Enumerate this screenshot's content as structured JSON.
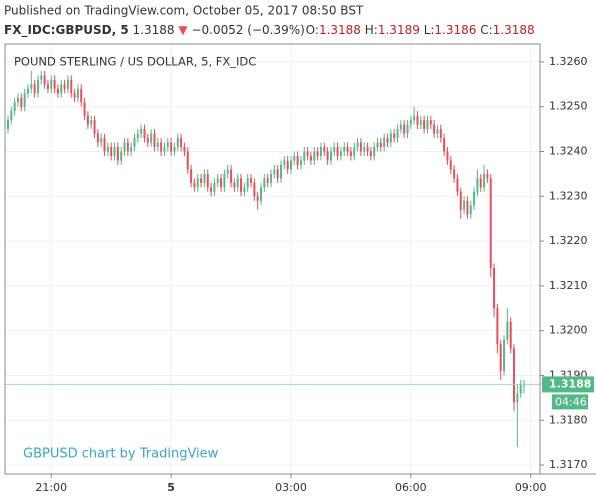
{
  "chart_data": {
    "type": "candlestick",
    "header": "Published on TradingView.com, October 05, 2017 08:50 BST",
    "symbol": "FX_IDC:GBPUSD, 5",
    "change_arrow": "▼",
    "change": "−0.0052 (−0.39%)",
    "ohlc_labels": [
      "O:",
      "H:",
      "L:",
      "C:"
    ],
    "title": "POUND STERLING / US DOLLAR, 5, FX_IDC",
    "watermark": "GBPUSD chart by TradingView",
    "countdown": "04:46",
    "up_color": "#53b987",
    "down_color": "#eb4d5c",
    "last_line_color": "#9fd9cc",
    "grid": true,
    "xlim": [
      -0.9,
      159.8
    ],
    "xticks": [
      {
        "value": 13,
        "label": "21:00"
      },
      {
        "value": 49,
        "label": "5"
      },
      {
        "value": 85,
        "label": "03:00"
      },
      {
        "value": 121,
        "label": "06:00"
      },
      {
        "value": 157,
        "label": "09:00"
      }
    ],
    "ylim": [
      1.3168,
      1.3264
    ],
    "yticks": [
      {
        "value": 1.317,
        "label": "1.3170"
      },
      {
        "value": 1.318,
        "label": "1.3180"
      },
      {
        "value": 1.319,
        "label": "1.3190"
      },
      {
        "value": 1.32,
        "label": "1.3200"
      },
      {
        "value": 1.321,
        "label": "1.3210"
      },
      {
        "value": 1.322,
        "label": "1.3220"
      },
      {
        "value": 1.323,
        "label": "1.3230"
      },
      {
        "value": 1.324,
        "label": "1.3240"
      },
      {
        "value": 1.325,
        "label": "1.3250"
      },
      {
        "value": 1.326,
        "label": "1.3260"
      }
    ],
    "open": [
      1.3245,
      1.3247,
      1.3249,
      1.3251,
      1.3252,
      1.325,
      1.3253,
      1.3254,
      1.3255,
      1.3253,
      1.3256,
      1.3257,
      1.3255,
      1.3254,
      1.3256,
      1.3254,
      1.3253,
      1.3255,
      1.3254,
      1.3256,
      1.3253,
      1.3252,
      1.3254,
      1.3251,
      1.3248,
      1.3246,
      1.3247,
      1.3244,
      1.3242,
      1.3243,
      1.324,
      1.3241,
      1.3239,
      1.3241,
      1.3238,
      1.324,
      1.3242,
      1.324,
      1.3241,
      1.3243,
      1.3244,
      1.3245,
      1.3243,
      1.3242,
      1.3244,
      1.3241,
      1.3242,
      1.324,
      1.3241,
      1.3242,
      1.324,
      1.3241,
      1.3243,
      1.3241,
      1.324,
      1.3236,
      1.3233,
      1.3232,
      1.3234,
      1.3233,
      1.3235,
      1.3232,
      1.3231,
      1.3233,
      1.3234,
      1.3232,
      1.3235,
      1.3236,
      1.3233,
      1.3232,
      1.3234,
      1.3231,
      1.3232,
      1.3234,
      1.3233,
      1.323,
      1.3229,
      1.3232,
      1.3234,
      1.3233,
      1.3235,
      1.3236,
      1.3234,
      1.3237,
      1.3238,
      1.3236,
      1.3238,
      1.3239,
      1.3237,
      1.3238,
      1.324,
      1.3239,
      1.3238,
      1.324,
      1.3239,
      1.3241,
      1.324,
      1.3238,
      1.324,
      1.3241,
      1.3239,
      1.324,
      1.3241,
      1.324,
      1.3239,
      1.3241,
      1.3242,
      1.324,
      1.3241,
      1.324,
      1.3239,
      1.3241,
      1.3242,
      1.3241,
      1.3243,
      1.3242,
      1.3244,
      1.3243,
      1.3245,
      1.3246,
      1.3244,
      1.3246,
      1.3247,
      1.3248,
      1.3246,
      1.3247,
      1.3245,
      1.3247,
      1.3246,
      1.3244,
      1.3245,
      1.3243,
      1.324,
      1.3238,
      1.3236,
      1.3234,
      1.3231,
      1.3227,
      1.3229,
      1.3226,
      1.3228,
      1.3231,
      1.3234,
      1.3232,
      1.3235,
      1.3234,
      1.3214,
      1.3205,
      1.3197,
      1.3191,
      1.3198,
      1.3202,
      1.3196,
      1.3184,
      1.3186,
      1.3188
    ],
    "high": [
      1.3248,
      1.325,
      1.3252,
      1.3253,
      1.3253,
      1.3254,
      1.3255,
      1.3258,
      1.3256,
      1.3257,
      1.3258,
      1.3258,
      1.3256,
      1.3257,
      1.3257,
      1.3255,
      1.3256,
      1.3256,
      1.3257,
      1.3257,
      1.3254,
      1.3255,
      1.3255,
      1.3252,
      1.3249,
      1.3248,
      1.3248,
      1.3245,
      1.3244,
      1.3244,
      1.3242,
      1.3242,
      1.3242,
      1.3242,
      1.3241,
      1.3243,
      1.3243,
      1.3242,
      1.3244,
      1.3245,
      1.3246,
      1.3246,
      1.3244,
      1.3245,
      1.3245,
      1.3243,
      1.3243,
      1.3242,
      1.3243,
      1.3243,
      1.3242,
      1.3244,
      1.3244,
      1.3242,
      1.3241,
      1.3237,
      1.3234,
      1.3235,
      1.3235,
      1.3236,
      1.3236,
      1.3233,
      1.3234,
      1.3235,
      1.3235,
      1.3236,
      1.3237,
      1.3237,
      1.3234,
      1.3235,
      1.3235,
      1.3233,
      1.3235,
      1.3235,
      1.3234,
      1.3231,
      1.3233,
      1.3235,
      1.3235,
      1.3236,
      1.3237,
      1.3237,
      1.3238,
      1.3239,
      1.3239,
      1.3239,
      1.324,
      1.324,
      1.3239,
      1.3241,
      1.3241,
      1.324,
      1.3241,
      1.3241,
      1.3242,
      1.3242,
      1.3241,
      1.3241,
      1.3242,
      1.3242,
      1.3241,
      1.3242,
      1.3242,
      1.3241,
      1.3242,
      1.3243,
      1.3243,
      1.3242,
      1.3242,
      1.3241,
      1.3242,
      1.3243,
      1.3243,
      1.3244,
      1.3244,
      1.3245,
      1.3245,
      1.3246,
      1.3247,
      1.3247,
      1.3247,
      1.3248,
      1.325,
      1.3249,
      1.3248,
      1.3248,
      1.3248,
      1.3248,
      1.3247,
      1.3246,
      1.3246,
      1.3244,
      1.3241,
      1.3239,
      1.3237,
      1.3235,
      1.3232,
      1.323,
      1.323,
      1.3229,
      1.3232,
      1.3236,
      1.3235,
      1.3237,
      1.3236,
      1.3235,
      1.3215,
      1.3206,
      1.3198,
      1.3199,
      1.3205,
      1.3203,
      1.3197,
      1.3188,
      1.3189,
      1.3189
    ],
    "low": [
      1.3244,
      1.3246,
      1.3248,
      1.325,
      1.3249,
      1.3249,
      1.3252,
      1.3253,
      1.3252,
      1.3252,
      1.3255,
      1.3254,
      1.3253,
      1.3253,
      1.3253,
      1.3252,
      1.3252,
      1.3253,
      1.3253,
      1.3252,
      1.3251,
      1.3251,
      1.325,
      1.3247,
      1.3245,
      1.3245,
      1.3243,
      1.3241,
      1.3241,
      1.3239,
      1.3239,
      1.3238,
      1.3238,
      1.3237,
      1.3237,
      1.3239,
      1.3239,
      1.3239,
      1.324,
      1.3242,
      1.3243,
      1.3242,
      1.3241,
      1.3241,
      1.324,
      1.324,
      1.3239,
      1.3239,
      1.324,
      1.3239,
      1.3239,
      1.324,
      1.324,
      1.3239,
      1.3235,
      1.3232,
      1.3231,
      1.3231,
      1.3232,
      1.3232,
      1.3231,
      1.323,
      1.323,
      1.3232,
      1.3231,
      1.3231,
      1.3234,
      1.3232,
      1.3231,
      1.3231,
      1.323,
      1.323,
      1.3231,
      1.3232,
      1.3229,
      1.3227,
      1.3228,
      1.3231,
      1.3232,
      1.3232,
      1.3234,
      1.3233,
      1.3233,
      1.3236,
      1.3235,
      1.3235,
      1.3237,
      1.3236,
      1.3236,
      1.3237,
      1.3238,
      1.3237,
      1.3237,
      1.3238,
      1.3238,
      1.3239,
      1.3237,
      1.3237,
      1.3239,
      1.3238,
      1.3238,
      1.3239,
      1.3239,
      1.3238,
      1.3238,
      1.324,
      1.3239,
      1.3239,
      1.3239,
      1.3238,
      1.3238,
      1.324,
      1.324,
      1.324,
      1.3241,
      1.3241,
      1.3242,
      1.3242,
      1.3244,
      1.3243,
      1.3243,
      1.3245,
      1.3246,
      1.3245,
      1.3245,
      1.3244,
      1.3244,
      1.3245,
      1.3243,
      1.3243,
      1.3242,
      1.3239,
      1.3237,
      1.3235,
      1.3233,
      1.323,
      1.3225,
      1.3226,
      1.3225,
      1.3225,
      1.3227,
      1.323,
      1.3231,
      1.3231,
      1.3233,
      1.3212,
      1.3203,
      1.3195,
      1.3189,
      1.319,
      1.3197,
      1.3195,
      1.3182,
      1.3174,
      1.3185,
      1.3186
    ],
    "close": [
      1.3247,
      1.3249,
      1.3251,
      1.3252,
      1.325,
      1.3253,
      1.3254,
      1.3255,
      1.3253,
      1.3256,
      1.3257,
      1.3255,
      1.3254,
      1.3256,
      1.3254,
      1.3253,
      1.3255,
      1.3254,
      1.3256,
      1.3253,
      1.3252,
      1.3254,
      1.3251,
      1.3248,
      1.3246,
      1.3247,
      1.3244,
      1.3242,
      1.3243,
      1.324,
      1.3241,
      1.3239,
      1.3241,
      1.3238,
      1.324,
      1.3242,
      1.324,
      1.3241,
      1.3243,
      1.3244,
      1.3245,
      1.3243,
      1.3242,
      1.3244,
      1.3241,
      1.3242,
      1.324,
      1.3241,
      1.3242,
      1.324,
      1.3241,
      1.3243,
      1.3241,
      1.324,
      1.3236,
      1.3233,
      1.3232,
      1.3234,
      1.3233,
      1.3235,
      1.3232,
      1.3231,
      1.3233,
      1.3234,
      1.3232,
      1.3235,
      1.3236,
      1.3233,
      1.3232,
      1.3234,
      1.3231,
      1.3232,
      1.3234,
      1.3233,
      1.323,
      1.3229,
      1.3232,
      1.3234,
      1.3233,
      1.3235,
      1.3236,
      1.3234,
      1.3237,
      1.3238,
      1.3236,
      1.3238,
      1.3239,
      1.3237,
      1.3238,
      1.324,
      1.3239,
      1.3238,
      1.324,
      1.3239,
      1.3241,
      1.324,
      1.3238,
      1.324,
      1.3241,
      1.3239,
      1.324,
      1.3241,
      1.324,
      1.3239,
      1.3241,
      1.3242,
      1.324,
      1.3241,
      1.324,
      1.3239,
      1.3241,
      1.3242,
      1.3241,
      1.3243,
      1.3242,
      1.3244,
      1.3243,
      1.3245,
      1.3246,
      1.3244,
      1.3246,
      1.3247,
      1.3248,
      1.3246,
      1.3247,
      1.3245,
      1.3247,
      1.3246,
      1.3244,
      1.3245,
      1.3243,
      1.324,
      1.3238,
      1.3236,
      1.3234,
      1.3231,
      1.3227,
      1.3229,
      1.3226,
      1.3228,
      1.3231,
      1.3234,
      1.3232,
      1.3235,
      1.3234,
      1.3214,
      1.3205,
      1.3197,
      1.3191,
      1.3198,
      1.3202,
      1.3196,
      1.3184,
      1.3186,
      1.3188,
      1.3188
    ]
  }
}
